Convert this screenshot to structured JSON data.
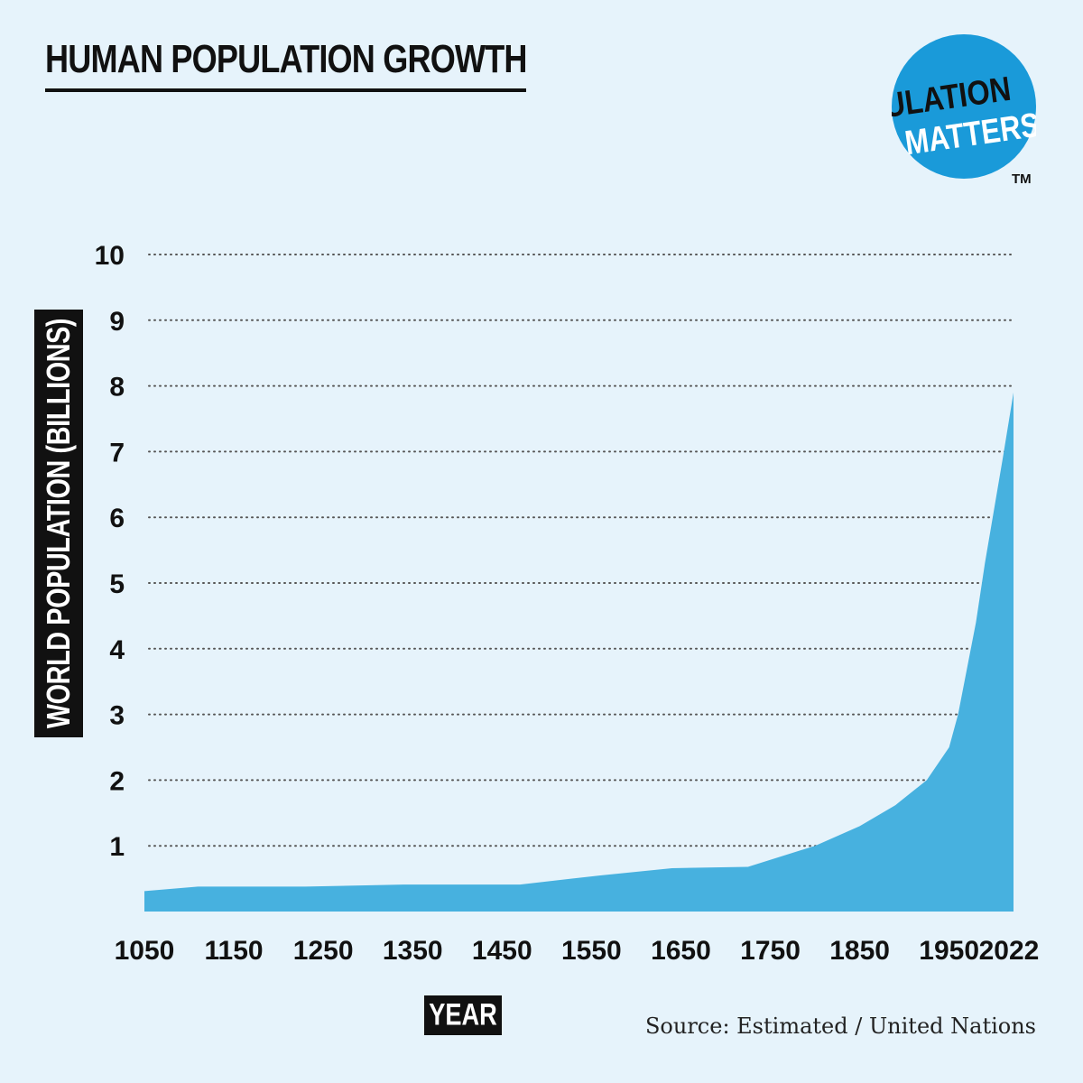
{
  "title": "HUMAN POPULATION GROWTH",
  "logo": {
    "line1": "POPULATION",
    "line2": "MATTERS",
    "tm": "TM",
    "circle_color": "#1a9ad9"
  },
  "colors": {
    "background": "#e6f3fb",
    "area": "#47b1df",
    "text": "#111111"
  },
  "source": "Source: Estimated / United Nations",
  "chart_data": {
    "type": "area",
    "title": "HUMAN POPULATION GROWTH",
    "xlabel": "YEAR",
    "ylabel": "WORLD POPULATION (BILLIONS)",
    "xlim": [
      1050,
      2022
    ],
    "ylim": [
      0,
      10
    ],
    "xticks": [
      "1050",
      "1150",
      "1250",
      "1350",
      "1450",
      "1550",
      "1650",
      "1750",
      "1850",
      "1950",
      "2022"
    ],
    "yticks": [
      "1",
      "2",
      "3",
      "4",
      "5",
      "6",
      "7",
      "8",
      "9",
      "10"
    ],
    "grid": "horizontal dotted",
    "series": [
      {
        "x": [
          1050,
          1110,
          1230,
          1340,
          1470,
          1560,
          1640,
          1725,
          1800,
          1850,
          1890,
          1925,
          1950,
          1960,
          1970,
          1980,
          1990,
          2000,
          2010,
          2022
        ],
        "y": [
          0.31,
          0.38,
          0.38,
          0.41,
          0.41,
          0.55,
          0.66,
          0.68,
          1.0,
          1.3,
          1.62,
          2.0,
          2.5,
          3.0,
          3.7,
          4.4,
          5.3,
          6.1,
          6.9,
          7.9
        ]
      }
    ]
  }
}
